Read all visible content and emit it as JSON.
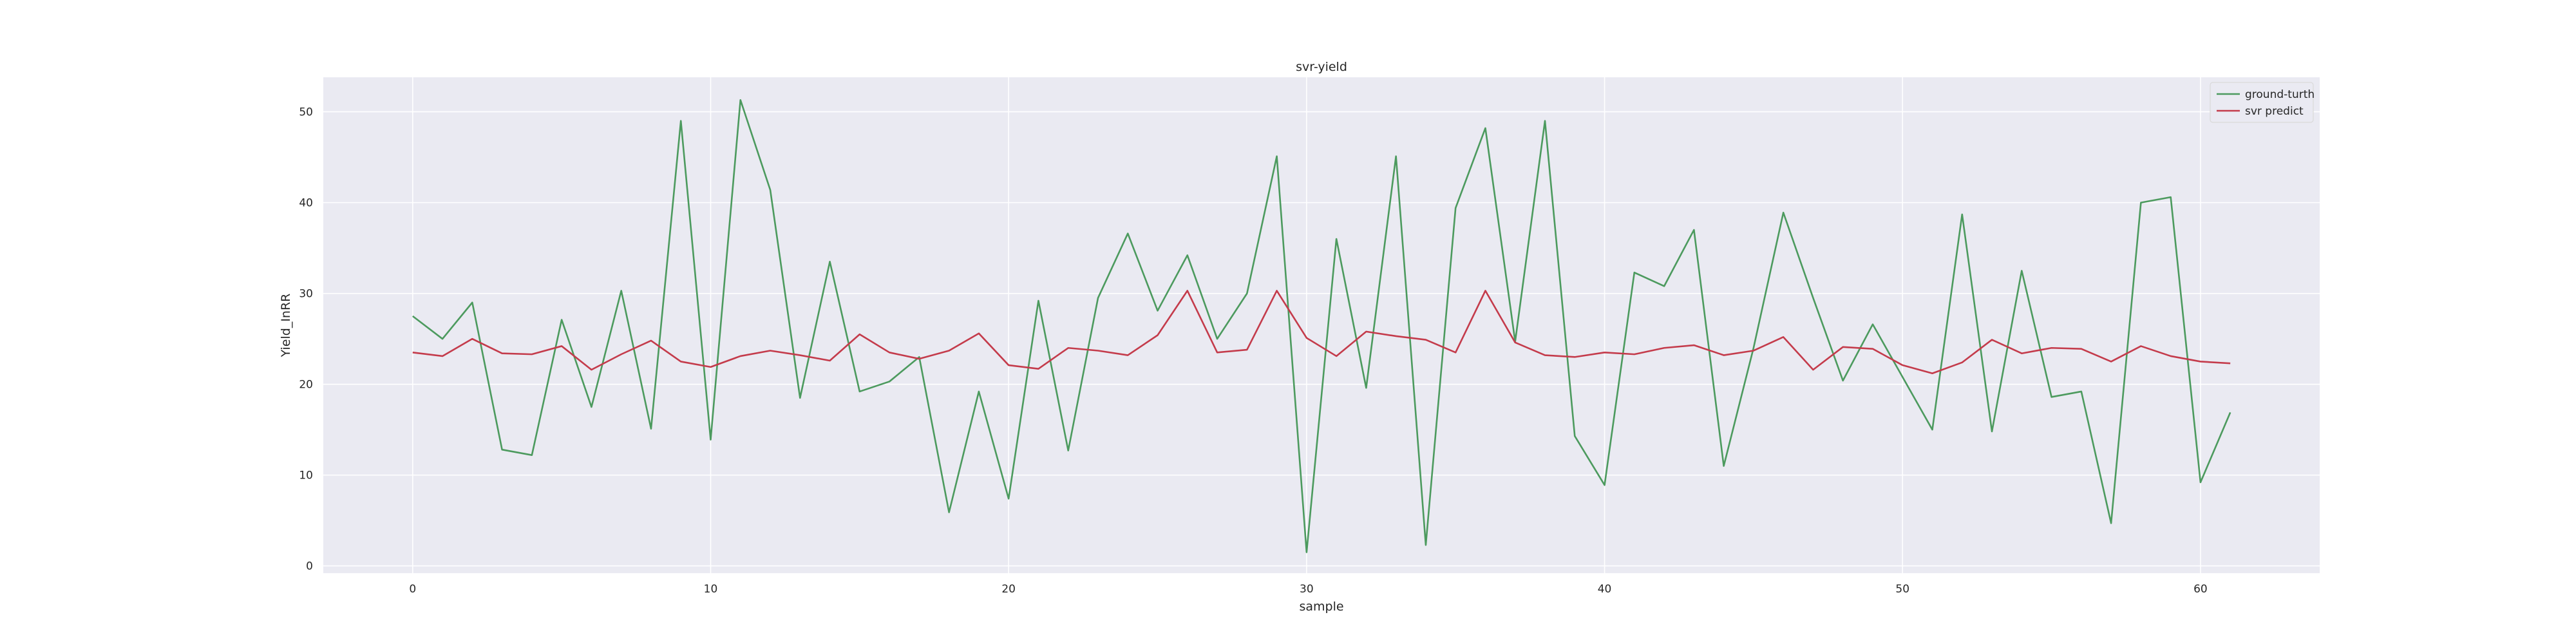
{
  "chart_data": {
    "type": "line",
    "title": "svr-yield",
    "xlabel": "sample",
    "ylabel": "Yield_InRR",
    "xlim": [
      -3,
      64
    ],
    "ylim": [
      -0.8,
      53.8
    ],
    "xticks": [
      0,
      10,
      20,
      30,
      40,
      50,
      60
    ],
    "yticks": [
      0,
      10,
      20,
      30,
      40,
      50
    ],
    "grid": true,
    "legend_position": "top-right",
    "background": "#eaeaf2",
    "x": [
      0,
      1,
      2,
      3,
      4,
      5,
      6,
      7,
      8,
      9,
      10,
      11,
      12,
      13,
      14,
      15,
      16,
      17,
      18,
      19,
      20,
      21,
      22,
      23,
      24,
      25,
      26,
      27,
      28,
      29,
      30,
      31,
      32,
      33,
      34,
      35,
      36,
      37,
      38,
      39,
      40,
      41,
      42,
      43,
      44,
      45,
      46,
      47,
      48,
      49,
      50,
      51,
      52,
      53,
      54,
      55,
      56,
      57,
      58,
      59,
      60,
      61
    ],
    "series": [
      {
        "name": "ground-turth",
        "color": "#4c9a5e",
        "values": [
          27.5,
          25.0,
          29.0,
          12.8,
          12.2,
          27.1,
          17.5,
          30.3,
          15.1,
          49.0,
          13.9,
          51.3,
          41.4,
          18.5,
          33.5,
          19.2,
          20.3,
          23.0,
          5.9,
          19.2,
          7.4,
          29.2,
          12.7,
          29.5,
          36.6,
          28.1,
          34.2,
          25.0,
          30.0,
          45.1,
          1.5,
          36.0,
          19.6,
          45.1,
          2.3,
          39.4,
          48.2,
          24.7,
          49.0,
          14.3,
          8.9,
          32.3,
          30.8,
          37.0,
          11.0,
          24.0,
          38.9,
          29.5,
          20.4,
          26.6,
          20.8,
          15.0,
          38.7,
          14.8,
          32.5,
          18.6,
          19.2,
          4.7,
          40.0,
          40.6,
          9.2,
          16.9
        ]
      },
      {
        "name": "svr predict",
        "color": "#c43b4b",
        "values": [
          23.5,
          23.1,
          25.0,
          23.4,
          23.3,
          24.2,
          21.6,
          23.3,
          24.8,
          22.5,
          21.9,
          23.1,
          23.7,
          23.2,
          22.6,
          25.5,
          23.5,
          22.8,
          23.7,
          25.6,
          22.1,
          21.7,
          24.0,
          23.7,
          23.2,
          25.4,
          30.3,
          23.5,
          23.8,
          30.3,
          25.1,
          23.1,
          25.8,
          25.3,
          24.9,
          23.5,
          30.3,
          24.6,
          23.2,
          23.0,
          23.5,
          23.3,
          24.0,
          24.3,
          23.2,
          23.7,
          25.2,
          21.6,
          24.1,
          23.9,
          22.1,
          21.2,
          22.4,
          24.9,
          23.4,
          24.0,
          23.9,
          22.5,
          24.2,
          23.1,
          22.5,
          22.3
        ]
      }
    ]
  }
}
